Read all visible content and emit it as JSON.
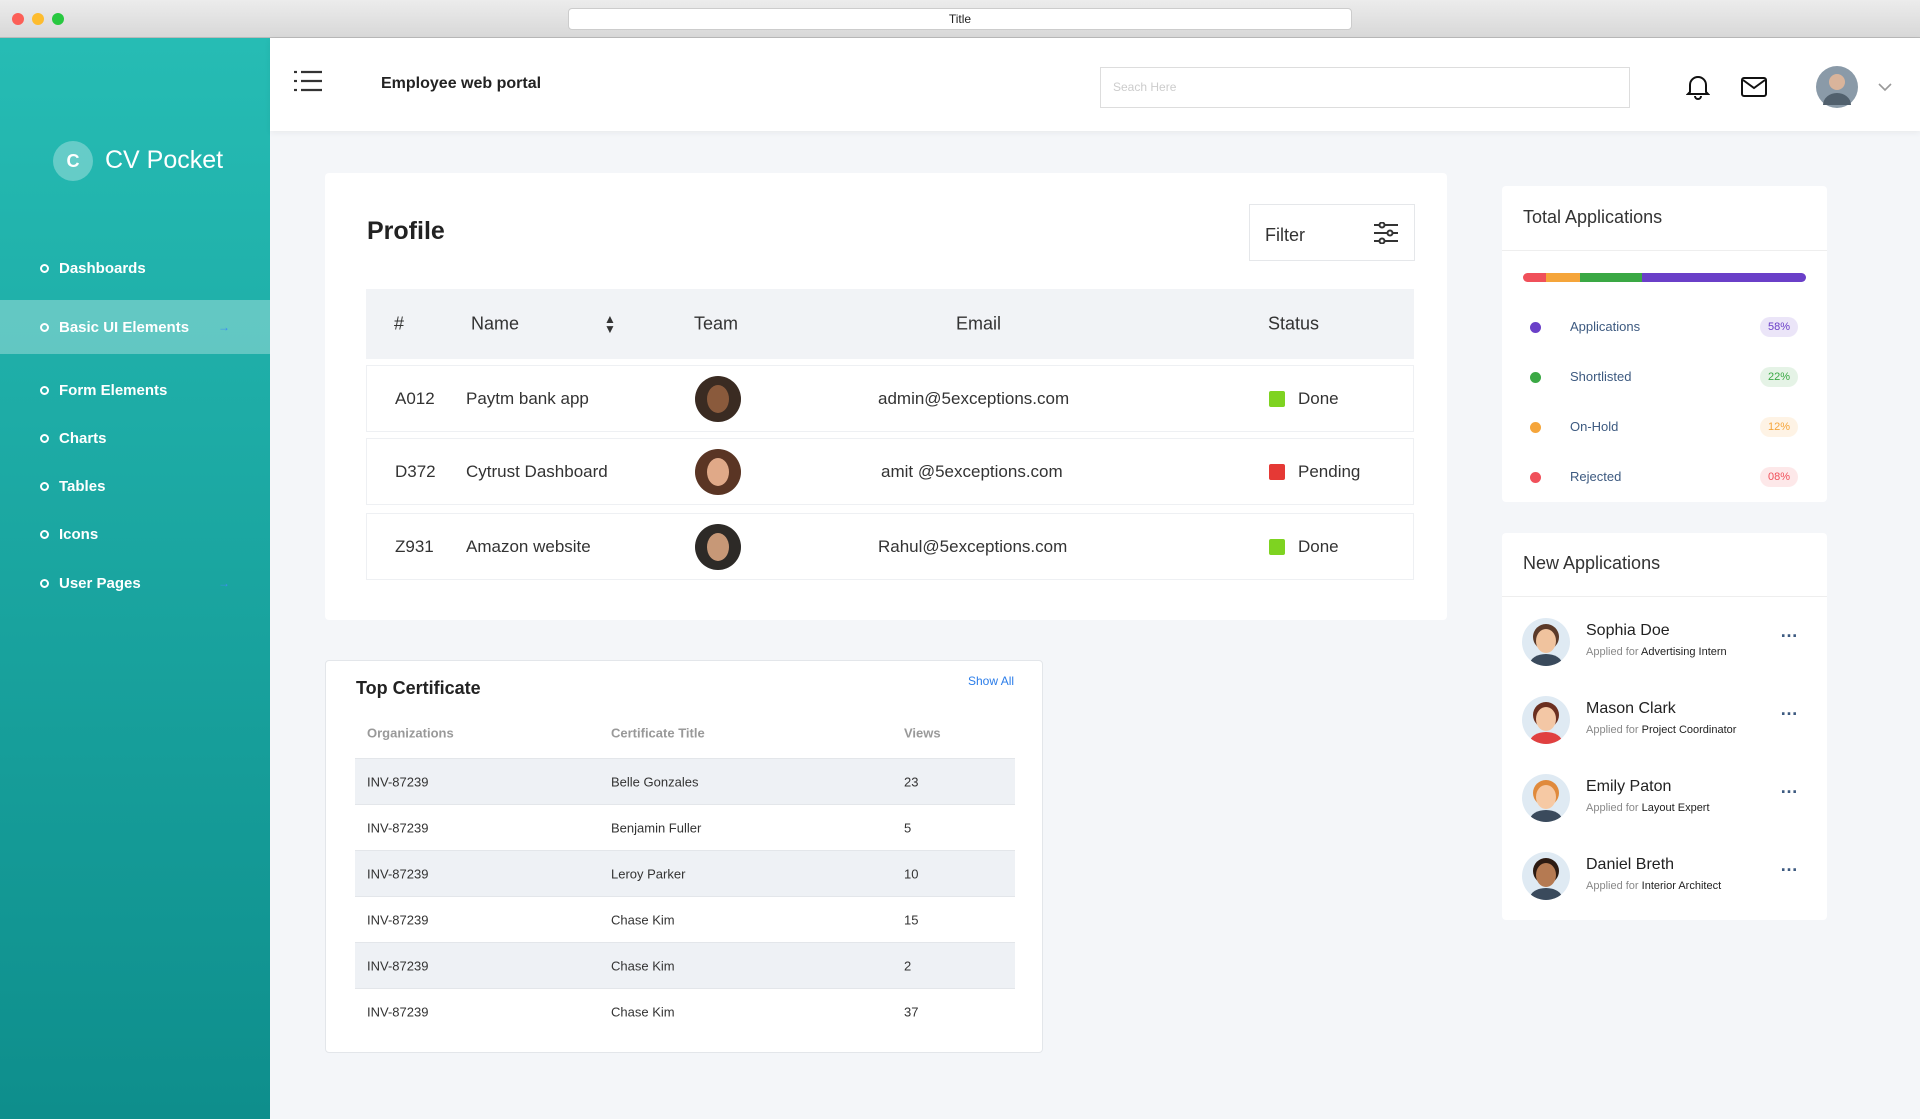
{
  "browser": {
    "title": "Title"
  },
  "sidebar": {
    "logo_letter": "C",
    "logo_text": "CV Pocket",
    "menu": [
      "Dashboards",
      "Basic UI Elements",
      "Form Elements",
      "Charts",
      "Tables",
      "Icons",
      "User Pages"
    ]
  },
  "header": {
    "title": "Employee web portal",
    "search_placeholder": "Seach Here"
  },
  "profile": {
    "title": "Profile",
    "filter": "Filter",
    "columns": [
      "#",
      "Name",
      "Team",
      "Email",
      "Status"
    ],
    "rows": [
      {
        "id": "A012",
        "name": "Paytm bank app",
        "email": "admin@5exceptions.com",
        "status": "Done",
        "status_color": "#7ed321"
      },
      {
        "id": "D372",
        "name": "Cytrust Dashboard",
        "email": "amit @5exceptions.com",
        "status": "Pending",
        "status_color": "#e53935"
      },
      {
        "id": "Z931",
        "name": "Amazon website",
        "email": "Rahul@5exceptions.com",
        "status": "Done",
        "status_color": "#7ed321"
      }
    ]
  },
  "certificates": {
    "title": "Top Certificate",
    "show_all": "Show All",
    "columns": [
      "Organizations",
      "Certificate Title",
      "Views"
    ],
    "rows": [
      [
        "INV-87239",
        "Belle Gonzales",
        "23"
      ],
      [
        "INV-87239",
        "Benjamin Fuller",
        "5"
      ],
      [
        "INV-87239",
        "Leroy Parker",
        "10"
      ],
      [
        "INV-87239",
        "Chase Kim",
        "15"
      ],
      [
        "INV-87239",
        "Chase Kim",
        "2"
      ],
      [
        "INV-87239",
        "Chase Kim",
        "37"
      ]
    ]
  },
  "total_applications": {
    "title": "Total Applications",
    "items": [
      {
        "label": "Applications",
        "value": 58,
        "value_label": "58%",
        "color": "#6a3fc8"
      },
      {
        "label": "Shortlisted",
        "value": 22,
        "value_label": "22%",
        "color": "#3aa844"
      },
      {
        "label": "On-Hold",
        "value": 12,
        "value_label": "12%",
        "color": "#f5a53a"
      },
      {
        "label": "Rejected",
        "value": 8,
        "value_label": "08%",
        "color": "#f0505a"
      }
    ]
  },
  "new_applications": {
    "title": "New Applications",
    "items": [
      {
        "name": "Sophia Doe",
        "prefix": "Applied for",
        "role": "Advertising Intern"
      },
      {
        "name": "Mason Clark",
        "prefix": "Applied for",
        "role": "Project Coordinator"
      },
      {
        "name": "Emily Paton",
        "prefix": "Applied for",
        "role": "Layout Expert"
      },
      {
        "name": "Daniel Breth",
        "prefix": "Applied for",
        "role": "Interior Architect"
      }
    ]
  }
}
